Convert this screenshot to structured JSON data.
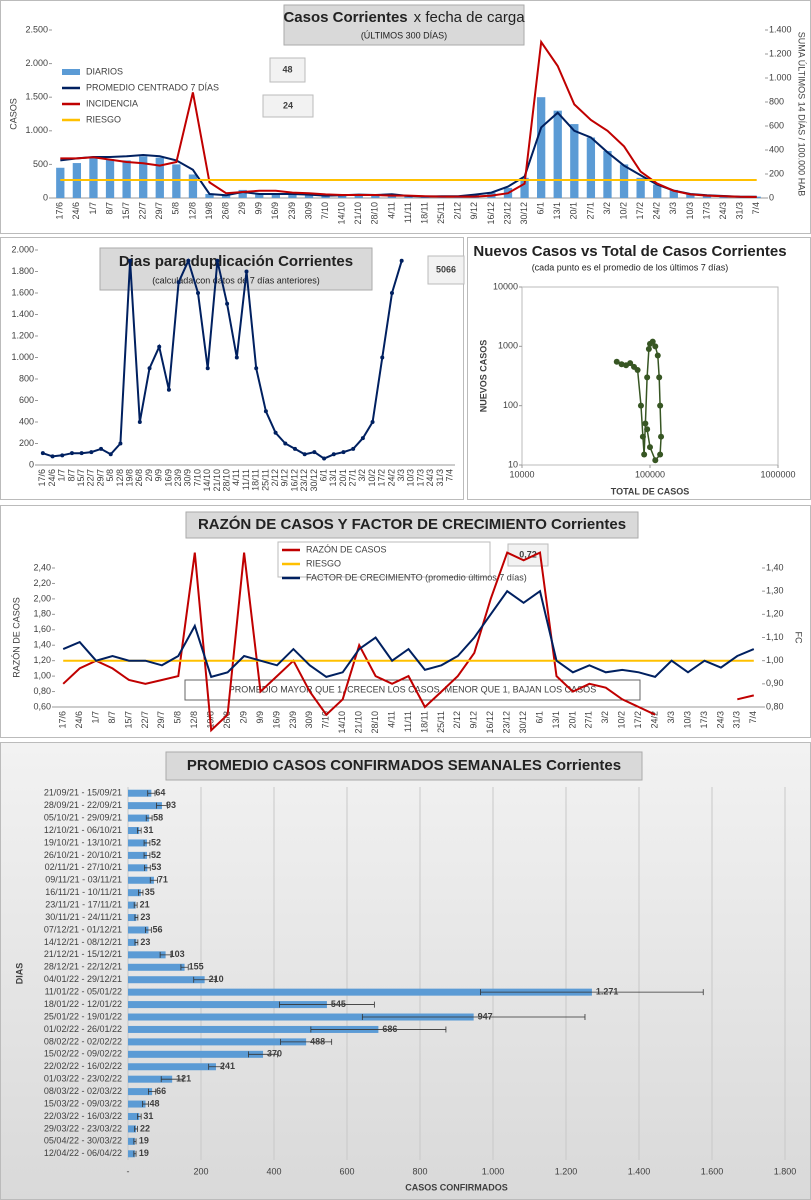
{
  "chart_data": [
    {
      "type": "combo",
      "title": "Casos Corrientes",
      "title_extra": "x fecha de carga",
      "subtitle": "(ÚLTIMOS 300 DÍAS)",
      "ylabel": "CASOS",
      "y2label": "SUMA ÚLTIMOS 14 DÍAS / 100.000 HAB",
      "annotations": [
        "48",
        "24"
      ],
      "categories": [
        "17/6",
        "24/6",
        "1/7",
        "8/7",
        "15/7",
        "22/7",
        "29/7",
        "5/8",
        "12/8",
        "19/8",
        "26/8",
        "2/9",
        "9/9",
        "16/9",
        "23/9",
        "30/9",
        "7/10",
        "14/10",
        "21/10",
        "28/10",
        "4/11",
        "11/11",
        "18/11",
        "25/11",
        "2/12",
        "9/12",
        "16/12",
        "23/12",
        "30/12",
        "6/1",
        "13/1",
        "20/1",
        "27/1",
        "3/2",
        "10/2",
        "17/2",
        "24/2",
        "3/3",
        "10/3",
        "17/3",
        "24/3",
        "31/3",
        "7/4"
      ],
      "series": [
        {
          "name": "DIARIOS",
          "color": "#5b9bd5",
          "mark": "bar",
          "values": [
            450,
            520,
            600,
            580,
            560,
            620,
            600,
            500,
            350,
            60,
            40,
            120,
            60,
            50,
            60,
            50,
            30,
            40,
            50,
            40,
            60,
            30,
            20,
            25,
            20,
            50,
            80,
            150,
            300,
            1500,
            1300,
            1100,
            900,
            700,
            500,
            300,
            200,
            120,
            60,
            40,
            30,
            20,
            20
          ]
        },
        {
          "name": "PROMEDIO CENTRADO 7 DÍAS",
          "color": "#002060",
          "mark": "line",
          "values": [
            560,
            590,
            610,
            610,
            620,
            640,
            620,
            560,
            420,
            60,
            40,
            90,
            60,
            60,
            60,
            50,
            35,
            40,
            50,
            45,
            55,
            30,
            22,
            25,
            25,
            50,
            80,
            170,
            320,
            1050,
            1270,
            1000,
            900,
            680,
            480,
            340,
            200,
            110,
            60,
            40,
            30,
            20,
            18
          ]
        },
        {
          "name": "INCIDENCIA",
          "color": "#c00000",
          "mark": "line",
          "axis": "y2",
          "values": [
            330,
            330,
            340,
            320,
            300,
            290,
            270,
            300,
            880,
            130,
            40,
            50,
            60,
            60,
            45,
            40,
            30,
            25,
            25,
            25,
            20,
            20,
            15,
            12,
            12,
            12,
            20,
            40,
            120,
            1300,
            1100,
            780,
            650,
            560,
            430,
            220,
            120,
            60,
            30,
            20,
            15,
            10,
            8
          ]
        },
        {
          "name": "RIESGO",
          "color": "#ffc000",
          "mark": "line",
          "axis": "y2",
          "values": [
            150,
            150,
            150,
            150,
            150,
            150,
            150,
            150,
            150,
            150,
            150,
            150,
            150,
            150,
            150,
            150,
            150,
            150,
            150,
            150,
            150,
            150,
            150,
            150,
            150,
            150,
            150,
            150,
            150,
            150,
            150,
            150,
            150,
            150,
            150,
            150,
            150,
            150,
            150,
            150,
            150,
            150,
            150
          ]
        }
      ],
      "ylim": [
        0,
        2500
      ],
      "yticks": [
        0,
        500,
        {
          "value": 1000,
          "label": "1.000"
        },
        {
          "value": 1500,
          "label": "1.500"
        },
        {
          "value": 2000,
          "label": "2.000"
        },
        {
          "value": 2500,
          "label": "2.500"
        }
      ],
      "y2lim": [
        0,
        1400
      ],
      "y2ticks": [
        0,
        200,
        400,
        600,
        800,
        {
          "value": 1000,
          "label": "1.000"
        },
        {
          "value": 1200,
          "label": "1.200"
        },
        {
          "value": 1400,
          "label": "1.400"
        }
      ],
      "grid": false
    },
    {
      "type": "line",
      "title": "Dias para duplicación Corrientes",
      "subtitle": "(calculada con datos de 7 días anteriores)",
      "annotations": [
        "5066"
      ],
      "color": "#002060",
      "markers": true,
      "categories": [
        "17/6",
        "24/6",
        "1/7",
        "8/7",
        "15/7",
        "22/7",
        "29/7",
        "5/8",
        "12/8",
        "19/8",
        "26/8",
        "2/9",
        "9/9",
        "16/9",
        "23/9",
        "30/9",
        "7/10",
        "14/10",
        "21/10",
        "28/10",
        "4/11",
        "11/11",
        "18/11",
        "25/11",
        "2/12",
        "9/12",
        "16/12",
        "23/12",
        "30/12",
        "6/1",
        "13/1",
        "20/1",
        "27/1",
        "3/2",
        "10/2",
        "17/2",
        "24/2",
        "3/3",
        "10/3",
        "17/3",
        "24/3",
        "31/3",
        "7/4"
      ],
      "values": [
        110,
        80,
        90,
        110,
        110,
        120,
        150,
        100,
        200,
        1900,
        400,
        900,
        1100,
        700,
        1700,
        1900,
        1600,
        900,
        1900,
        1500,
        1000,
        1800,
        900,
        500,
        300,
        200,
        150,
        100,
        120,
        60,
        100,
        120,
        150,
        250,
        400,
        1000,
        1600,
        1900,
        null,
        null,
        null,
        null,
        null
      ],
      "ylim": [
        0,
        2000
      ],
      "yticks": [
        0,
        200,
        400,
        600,
        800,
        {
          "value": 1000,
          "label": "1.000"
        },
        {
          "value": 1200,
          "label": "1.200"
        },
        {
          "value": 1400,
          "label": "1.400"
        },
        {
          "value": 1600,
          "label": "1.600"
        },
        {
          "value": 1800,
          "label": "1.800"
        },
        {
          "value": 2000,
          "label": "2.000"
        }
      ],
      "grid": false
    },
    {
      "type": "scatter",
      "title": "Nuevos Casos vs Total de Casos Corrientes",
      "subtitle": "(cada punto es el promedio de los últimos 7 días)",
      "xlabel": "TOTAL DE CASOS",
      "ylabel": "NUEVOS CASOS",
      "color": "#375623",
      "log_x": true,
      "log_y": true,
      "x": [
        55000,
        60000,
        65000,
        70000,
        75000,
        80000,
        85000,
        88000,
        90000,
        92000,
        95000,
        98000,
        100000,
        105000,
        110000,
        115000,
        118000,
        120000,
        122000,
        120000,
        110000,
        100000,
        95000
      ],
      "values": [
        550,
        500,
        480,
        520,
        450,
        400,
        100,
        30,
        15,
        50,
        300,
        900,
        1100,
        1200,
        1000,
        700,
        300,
        100,
        30,
        15,
        12,
        20,
        40
      ],
      "xlim": [
        10000,
        1000000
      ],
      "xticks": [
        10000,
        100000,
        1000000
      ],
      "ylim": [
        10,
        10000
      ],
      "yticks": [
        10,
        100,
        1000,
        10000
      ],
      "grid": false
    },
    {
      "type": "line",
      "title": "RAZÓN DE CASOS Y FACTOR DE CRECIMIENTO Corrientes",
      "annotations": [
        "0,72"
      ],
      "note": "PROMEDIO MAYOR QUE 1, CRECEN LOS CASOS, MENOR QUE 1, BAJAN LOS CASOS",
      "ylabel": "RAZÓN DE CASOS",
      "y2label": "FC",
      "categories": [
        "17/6",
        "24/6",
        "1/7",
        "8/7",
        "15/7",
        "22/7",
        "29/7",
        "5/8",
        "12/8",
        "19/8",
        "26/8",
        "2/9",
        "9/9",
        "16/9",
        "23/9",
        "30/9",
        "7/10",
        "14/10",
        "21/10",
        "28/10",
        "4/11",
        "11/11",
        "18/11",
        "25/11",
        "2/12",
        "9/12",
        "16/12",
        "23/12",
        "30/12",
        "6/1",
        "13/1",
        "20/1",
        "27/1",
        "3/2",
        "10/2",
        "17/2",
        "24/2",
        "3/3",
        "10/3",
        "17/3",
        "24/3",
        "31/3",
        "7/4"
      ],
      "series": [
        {
          "name": "RAZÓN DE CASOS",
          "color": "#c00000",
          "values": [
            0.9,
            1.1,
            1.2,
            1.1,
            0.95,
            0.9,
            0.95,
            1.0,
            2.6,
            0.3,
            0.5,
            2.6,
            0.8,
            1.0,
            1.2,
            0.8,
            0.5,
            0.7,
            1.4,
            1.0,
            0.9,
            1.0,
            0.6,
            0.8,
            1.0,
            1.3,
            2.0,
            2.6,
            2.5,
            2.6,
            1.0,
            0.8,
            0.9,
            0.85,
            0.7,
            0.6,
            0.5,
            null,
            null,
            null,
            null,
            0.7,
            0.75
          ]
        },
        {
          "name": "RIESGO",
          "color": "#ffc000",
          "axis": "y2",
          "values": [
            1,
            1,
            1,
            1,
            1,
            1,
            1,
            1,
            1,
            1,
            1,
            1,
            1,
            1,
            1,
            1,
            1,
            1,
            1,
            1,
            1,
            1,
            1,
            1,
            1,
            1,
            1,
            1,
            1,
            1,
            1,
            1,
            1,
            1,
            1,
            1,
            1,
            1,
            1,
            1,
            1,
            1,
            1
          ]
        },
        {
          "name": "FACTOR DE CRECIMIENTO (promedio últimos 7 días)",
          "color": "#002060",
          "axis": "y2",
          "values": [
            1.05,
            1.08,
            1.0,
            1.02,
            1.0,
            1.0,
            0.98,
            1.02,
            1.15,
            0.93,
            0.95,
            1.02,
            1.0,
            0.98,
            1.05,
            0.98,
            0.93,
            0.95,
            1.05,
            1.1,
            1.0,
            1.05,
            0.96,
            0.98,
            1.02,
            1.1,
            1.2,
            1.3,
            1.25,
            1.3,
            1.0,
            0.95,
            0.98,
            0.95,
            0.96,
            0.95,
            0.93,
            1.0,
            0.95,
            1.0,
            0.97,
            1.02,
            1.05
          ]
        }
      ],
      "ylim": [
        0.6,
        2.4
      ],
      "yticks": [
        {
          "value": 0.6,
          "label": "0,60"
        },
        {
          "value": 0.8,
          "label": "0,80"
        },
        {
          "value": 1.0,
          "label": "1,00"
        },
        {
          "value": 1.2,
          "label": "1,20"
        },
        {
          "value": 1.4,
          "label": "1,40"
        },
        {
          "value": 1.6,
          "label": "1,60"
        },
        {
          "value": 1.8,
          "label": "1,80"
        },
        {
          "value": 2.0,
          "label": "2,00"
        },
        {
          "value": 2.2,
          "label": "2,20"
        },
        {
          "value": 2.4,
          "label": "2,40"
        }
      ],
      "y2lim": [
        0.8,
        1.4
      ],
      "y2ticks": [
        {
          "value": 0.8,
          "label": "0,80"
        },
        {
          "value": 0.9,
          "label": "0,90"
        },
        {
          "value": 1.0,
          "label": "1,00"
        },
        {
          "value": 1.1,
          "label": "1,10"
        },
        {
          "value": 1.2,
          "label": "1,20"
        },
        {
          "value": 1.3,
          "label": "1,30"
        },
        {
          "value": 1.4,
          "label": "1,40"
        }
      ],
      "grid": false
    },
    {
      "type": "bar",
      "orientation": "horizontal",
      "title": "PROMEDIO CASOS CONFIRMADOS SEMANALES Corrientes",
      "xlabel": "CASOS CONFIRMADOS",
      "ylabel": "DIAS",
      "color": "#5b9bd5",
      "categories": [
        "21/09/21 - 15/09/21",
        "28/09/21 - 22/09/21",
        "05/10/21 - 29/09/21",
        "12/10/21 - 06/10/21",
        "19/10/21 - 13/10/21",
        "26/10/21 - 20/10/21",
        "02/11/21 - 27/10/21",
        "09/11/21 - 03/11/21",
        "16/11/21 - 10/11/21",
        "23/11/21 - 17/11/21",
        "30/11/21 - 24/11/21",
        "07/12/21 - 01/12/21",
        "14/12/21 - 08/12/21",
        "21/12/21 - 15/12/21",
        "28/12/21 - 22/12/21",
        "04/01/22 - 29/12/21",
        "11/01/22 - 05/01/22",
        "18/01/22 - 12/01/22",
        "25/01/22 - 19/01/22",
        "01/02/22 - 26/01/22",
        "08/02/22 - 02/02/22",
        "15/02/22 - 09/02/22",
        "22/02/22 - 16/02/22",
        "01/03/22 - 23/02/22",
        "08/03/22 - 02/03/22",
        "15/03/22 - 09/03/22",
        "22/03/22 - 16/03/22",
        "29/03/22 - 23/03/22",
        "05/04/22 - 30/03/22",
        "12/04/22 - 06/04/22"
      ],
      "values": [
        64,
        93,
        58,
        31,
        52,
        52,
        53,
        71,
        35,
        21,
        23,
        56,
        23,
        103,
        155,
        210,
        1271,
        545,
        947,
        686,
        488,
        370,
        241,
        121,
        66,
        48,
        31,
        22,
        19,
        19
      ],
      "value_labels": [
        "64",
        "93",
        "58",
        "31",
        "52",
        "52",
        "53",
        "71",
        "35",
        "21",
        "23",
        "56",
        "23",
        "103",
        "155",
        "210",
        "1.271",
        "545",
        "947",
        "686",
        "488",
        "370",
        "241",
        "121",
        "66",
        "48",
        "31",
        "22",
        "19",
        "19"
      ],
      "errors": [
        10,
        15,
        8,
        5,
        8,
        8,
        8,
        10,
        6,
        4,
        4,
        8,
        4,
        15,
        10,
        30,
        305,
        130,
        305,
        185,
        70,
        40,
        20,
        30,
        10,
        8,
        5,
        4,
        3,
        3
      ],
      "xlim": [
        0,
        1800
      ],
      "xticks": [
        {
          "value": 0,
          "label": "-"
        },
        200,
        400,
        600,
        800,
        {
          "value": 1000,
          "label": "1.000"
        },
        {
          "value": 1200,
          "label": "1.200"
        },
        {
          "value": 1400,
          "label": "1.400"
        },
        {
          "value": 1600,
          "label": "1.600"
        },
        {
          "value": 1800,
          "label": "1.800"
        }
      ],
      "grid": true
    }
  ]
}
